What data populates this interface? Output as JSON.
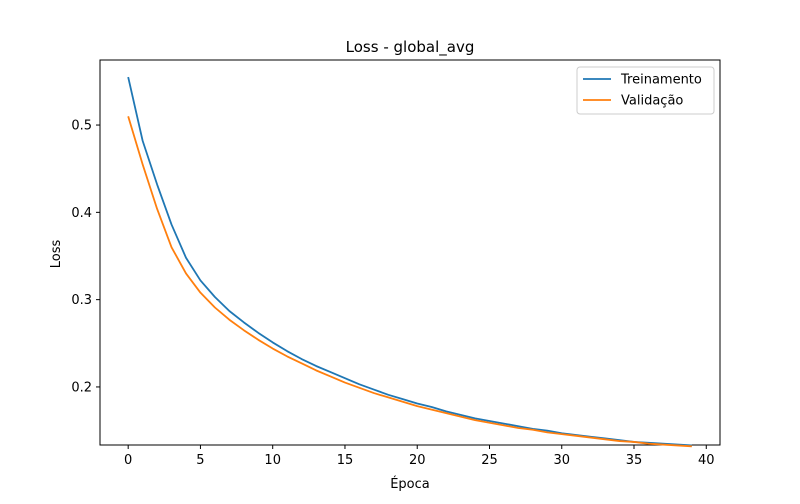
{
  "chart_data": {
    "type": "line",
    "title": "Loss - global_avg",
    "xlabel": "Época",
    "ylabel": "Loss",
    "xlim": [
      -1.95,
      40.95
    ],
    "ylim": [
      0.1335,
      0.5745
    ],
    "xticks": [
      0,
      5,
      10,
      15,
      20,
      25,
      30,
      35,
      40
    ],
    "yticks": [
      0.2,
      0.3,
      0.4,
      0.5
    ],
    "grid": false,
    "legend_position": "upper right",
    "x": [
      0,
      1,
      2,
      3,
      4,
      5,
      6,
      7,
      8,
      9,
      10,
      11,
      12,
      13,
      14,
      15,
      16,
      17,
      18,
      19,
      20,
      21,
      22,
      23,
      24,
      25,
      26,
      27,
      28,
      29,
      30,
      31,
      32,
      33,
      34,
      35,
      36,
      37,
      38,
      39
    ],
    "series": [
      {
        "name": "Treinamento",
        "color": "#1f77b4",
        "values": [
          0.555,
          0.482,
          0.432,
          0.386,
          0.348,
          0.322,
          0.303,
          0.287,
          0.274,
          0.262,
          0.251,
          0.241,
          0.232,
          0.224,
          0.217,
          0.21,
          0.203,
          0.197,
          0.191,
          0.186,
          0.181,
          0.177,
          0.172,
          0.168,
          0.164,
          0.161,
          0.158,
          0.155,
          0.152,
          0.15,
          0.147,
          0.145,
          0.143,
          0.141,
          0.139,
          0.137,
          0.136,
          0.135,
          0.134,
          0.133
        ]
      },
      {
        "name": "Validação",
        "color": "#ff7f0e",
        "values": [
          0.51,
          0.455,
          0.404,
          0.36,
          0.33,
          0.308,
          0.291,
          0.277,
          0.265,
          0.254,
          0.244,
          0.235,
          0.227,
          0.219,
          0.212,
          0.205,
          0.199,
          0.193,
          0.188,
          0.183,
          0.178,
          0.174,
          0.17,
          0.166,
          0.162,
          0.159,
          0.156,
          0.153,
          0.151,
          0.148,
          0.146,
          0.144,
          0.142,
          0.14,
          0.138,
          0.137,
          0.135,
          0.134,
          0.133,
          0.132
        ]
      }
    ]
  }
}
